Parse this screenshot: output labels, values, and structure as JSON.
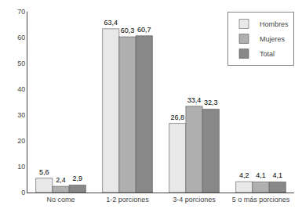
{
  "chart_data": {
    "type": "bar",
    "categories": [
      "No come",
      "1-2 porciones",
      "3-4 porciones",
      "5 o más porciones"
    ],
    "series": [
      {
        "name": "Hombres",
        "color": "#e8e8e8",
        "values": [
          5.6,
          63.4,
          26.8,
          4.2
        ],
        "value_labels": [
          "5,6",
          "63,4",
          "26,8",
          "4,2"
        ]
      },
      {
        "name": "Mujeres",
        "color": "#b0b0b0",
        "values": [
          2.4,
          60.3,
          33.4,
          4.1
        ],
        "value_labels": [
          "2,4",
          "60,3",
          "33,4",
          "4,1"
        ]
      },
      {
        "name": "Total",
        "color": "#888888",
        "values": [
          2.9,
          60.7,
          32.3,
          4.1
        ],
        "value_labels": [
          "2,9",
          "60,7",
          "32,3",
          "4,1"
        ]
      }
    ],
    "ylim": [
      0,
      70
    ],
    "yticks": [
      0,
      10,
      20,
      30,
      40,
      50,
      60,
      70
    ],
    "grid": false,
    "legend": "upper right",
    "data_labels": true
  }
}
